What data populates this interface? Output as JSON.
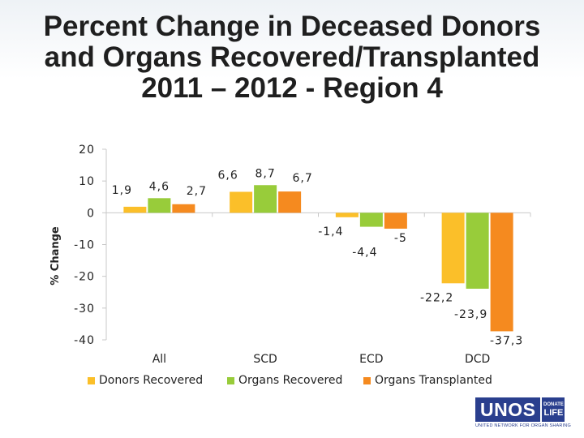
{
  "title": {
    "line1": "Percent Change in Deceased Donors",
    "line2": "and Organs Recovered/Transplanted",
    "line3": "2011 – 2012 - Region 4"
  },
  "colors": {
    "donors": "#fbbf29",
    "organs_recovered": "#98cc3a",
    "organs_transplanted": "#f58a1f",
    "axis": "#c8c8c8",
    "logo": "#2a3f8e"
  },
  "chart_data": {
    "type": "bar",
    "title": "Percent Change in Deceased Donors and Organs Recovered/Transplanted 2011 – 2012 - Region 4",
    "xlabel": "",
    "ylabel": "% Change",
    "ylim": [
      -40,
      20
    ],
    "yticks": [
      20,
      10,
      0,
      -10,
      -20,
      -30,
      -40
    ],
    "ytick_labels": [
      "20",
      "10",
      "0",
      "-10",
      "-20",
      "-30",
      "-40"
    ],
    "categories": [
      "All",
      "SCD",
      "ECD",
      "DCD"
    ],
    "series": [
      {
        "name": "Donors Recovered",
        "values": [
          1.9,
          6.6,
          -1.4,
          -22.2
        ],
        "labels": [
          "1,9",
          "6,6",
          "-1,4",
          "-22,2"
        ]
      },
      {
        "name": "Organs Recovered",
        "values": [
          4.6,
          8.7,
          -4.4,
          -23.9
        ],
        "labels": [
          "4,6",
          "8,7",
          "-4,4",
          "-23,9"
        ]
      },
      {
        "name": "Organs Transplanted",
        "values": [
          2.7,
          6.7,
          -5,
          -37.3
        ],
        "labels": [
          "2,7",
          "6,7",
          "-5",
          "-37,3"
        ]
      }
    ],
    "legend_position": "bottom",
    "grid": false
  },
  "logo": {
    "main": "UNOS",
    "side_top": "DONATE",
    "side_bottom": "LIFE",
    "sub": "UNITED NETWORK FOR ORGAN SHARING"
  }
}
